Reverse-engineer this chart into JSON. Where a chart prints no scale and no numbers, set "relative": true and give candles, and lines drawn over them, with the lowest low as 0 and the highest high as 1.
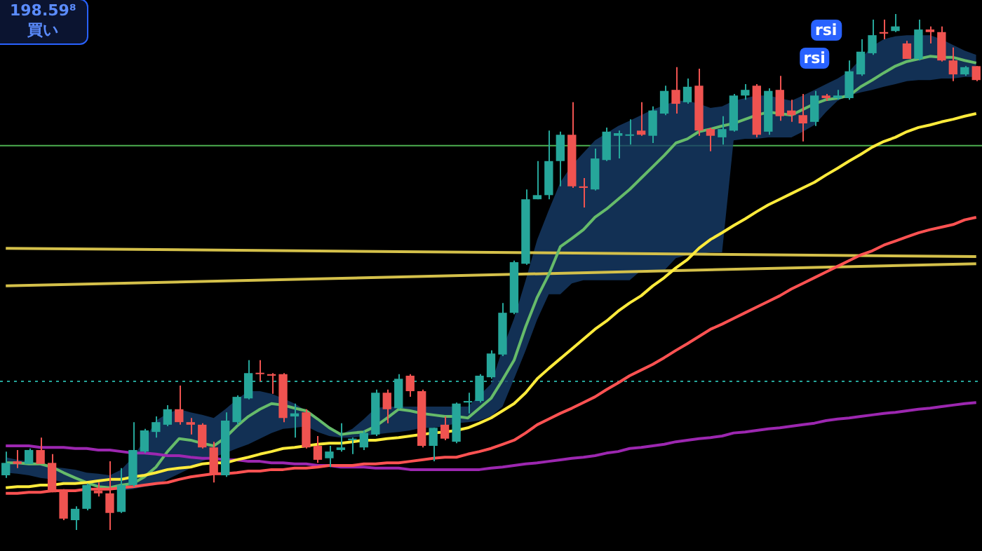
{
  "chart_data": {
    "type": "candlestick",
    "relative": true,
    "tick_labels": false,
    "categories": [
      null,
      null,
      null,
      null,
      null,
      null,
      null,
      null,
      null,
      null,
      null,
      null,
      null,
      null,
      null,
      null,
      null,
      null,
      null,
      null,
      null,
      null,
      null,
      null,
      null,
      null,
      null,
      null,
      null,
      null,
      null,
      null,
      null,
      null,
      null,
      null,
      null,
      null,
      null,
      null,
      null,
      null,
      null,
      null,
      null,
      null,
      null,
      null,
      null,
      null,
      null,
      null,
      null,
      null,
      null,
      null,
      null,
      null,
      null,
      null,
      null,
      null,
      null,
      null,
      null,
      null,
      null,
      null,
      null,
      null,
      null,
      null,
      null,
      null,
      null,
      null,
      null,
      null,
      null,
      null,
      null,
      null,
      null,
      null,
      null
    ],
    "ohlc": [
      [
        0.106,
        0.152,
        0.101,
        0.13
      ],
      [
        0.133,
        0.155,
        0.12,
        0.128
      ],
      [
        0.128,
        0.158,
        0.128,
        0.155
      ],
      [
        0.155,
        0.179,
        0.128,
        0.128
      ],
      [
        0.13,
        0.147,
        0.073,
        0.073
      ],
      [
        0.079,
        0.079,
        0.019,
        0.022
      ],
      [
        0.019,
        0.046,
        0,
        0.041
      ],
      [
        0.041,
        0.09,
        0.038,
        0.087
      ],
      [
        0.076,
        0.092,
        0.065,
        0.071
      ],
      [
        0.071,
        0.133,
        0,
        0.033
      ],
      [
        0.035,
        0.12,
        0.033,
        0.087
      ],
      [
        0.087,
        0.209,
        0.084,
        0.155
      ],
      [
        0.152,
        0.196,
        0.149,
        0.193
      ],
      [
        0.19,
        0.22,
        0.179,
        0.209
      ],
      [
        0.204,
        0.242,
        0.201,
        0.234
      ],
      [
        0.234,
        0.28,
        0.204,
        0.209
      ],
      [
        0.209,
        0.217,
        0.185,
        0.204
      ],
      [
        0.204,
        0.207,
        0.158,
        0.16
      ],
      [
        0.16,
        0.171,
        0.092,
        0.109
      ],
      [
        0.106,
        0.228,
        0.103,
        0.212
      ],
      [
        0.209,
        0.261,
        0.204,
        0.258
      ],
      [
        0.255,
        0.329,
        0.253,
        0.304
      ],
      [
        0.304,
        0.329,
        0.288,
        0.302
      ],
      [
        0.302,
        0.304,
        0.264,
        0.299
      ],
      [
        0.302,
        0.304,
        0.209,
        0.217
      ],
      [
        0.22,
        0.245,
        0.179,
        0.226
      ],
      [
        0.228,
        0.234,
        0.158,
        0.16
      ],
      [
        0.163,
        0.182,
        0.13,
        0.136
      ],
      [
        0.139,
        0.163,
        0.122,
        0.152
      ],
      [
        0.155,
        0.207,
        0.152,
        0.16
      ],
      [
        0.174,
        0.179,
        0.147,
        0.177
      ],
      [
        0.16,
        0.193,
        0.155,
        0.188
      ],
      [
        0.185,
        0.272,
        0.182,
        0.266
      ],
      [
        0.266,
        0.272,
        0.207,
        0.234
      ],
      [
        0.236,
        0.302,
        0.234,
        0.293
      ],
      [
        0.299,
        0.302,
        0.258,
        0.269
      ],
      [
        0.269,
        0.272,
        0.16,
        0.163
      ],
      [
        0.163,
        0.198,
        0.133,
        0.198
      ],
      [
        0.204,
        0.22,
        0.174,
        0.177
      ],
      [
        0.171,
        0.247,
        0.168,
        0.245
      ],
      [
        0.247,
        0.266,
        0.226,
        0.25
      ],
      [
        0.25,
        0.302,
        0.247,
        0.299
      ],
      [
        0.296,
        0.348,
        0.293,
        0.342
      ],
      [
        0.34,
        0.44,
        0.337,
        0.421
      ],
      [
        0.421,
        0.522,
        0.418,
        0.519
      ],
      [
        0.516,
        0.66,
        0.514,
        0.641
      ],
      [
        0.641,
        0.715,
        0.641,
        0.649
      ],
      [
        0.649,
        0.774,
        0.641,
        0.715
      ],
      [
        0.715,
        0.772,
        0.666,
        0.766
      ],
      [
        0.766,
        0.829,
        0.663,
        0.666
      ],
      [
        0.666,
        0.682,
        0.625,
        0.663
      ],
      [
        0.66,
        0.739,
        0.658,
        0.72
      ],
      [
        0.717,
        0.78,
        0.715,
        0.772
      ],
      [
        0.764,
        0.774,
        0.72,
        0.769
      ],
      [
        0.764,
        0.796,
        0.747,
        0.766
      ],
      [
        0.774,
        0.829,
        0.764,
        0.766
      ],
      [
        0.764,
        0.821,
        0.75,
        0.813
      ],
      [
        0.807,
        0.861,
        0.804,
        0.851
      ],
      [
        0.853,
        0.897,
        0.807,
        0.826
      ],
      [
        0.829,
        0.875,
        0.826,
        0.859
      ],
      [
        0.861,
        0.894,
        0.764,
        0.774
      ],
      [
        0.777,
        0.78,
        0.734,
        0.764
      ],
      [
        0.761,
        0.802,
        0.747,
        0.777
      ],
      [
        0.774,
        0.845,
        0.772,
        0.842
      ],
      [
        0.842,
        0.864,
        0.834,
        0.853
      ],
      [
        0.861,
        0.864,
        0.761,
        0.766
      ],
      [
        0.772,
        0.856,
        0.766,
        0.851
      ],
      [
        0.853,
        0.88,
        0.793,
        0.802
      ],
      [
        0.813,
        0.834,
        0.791,
        0.804
      ],
      [
        0.804,
        0.845,
        0.753,
        0.788
      ],
      [
        0.791,
        0.851,
        0.783,
        0.842
      ],
      [
        0.842,
        0.845,
        0.832,
        0.837
      ],
      [
        0.837,
        0.853,
        0.834,
        0.842
      ],
      [
        0.837,
        0.91,
        0.834,
        0.889
      ],
      [
        0.883,
        0.951,
        0.88,
        0.927
      ],
      [
        0.924,
        0.989,
        0.921,
        0.959
      ],
      [
        0.965,
        0.989,
        0.951,
        0.962
      ],
      [
        0.967,
        1,
        0.965,
        0.976
      ],
      [
        0.943,
        0.948,
        0.913,
        0.913
      ],
      [
        0.913,
        0.989,
        0.91,
        0.97
      ],
      [
        0.97,
        0.976,
        0.943,
        0.965
      ],
      [
        0.965,
        0.976,
        0.908,
        0.91
      ],
      [
        0.91,
        0.935,
        0.87,
        0.883
      ],
      [
        0.883,
        0.899,
        0.88,
        0.897
      ],
      [
        0.899,
        0.899,
        0.87,
        0.872
      ]
    ],
    "colors": [
      "#26a69a",
      "#ef5350",
      "#26a69a",
      "#ef5350",
      "#ef5350",
      "#ef5350",
      "#26a69a",
      "#26a69a",
      "#ef5350",
      "#ef5350",
      "#26a69a",
      "#26a69a",
      "#26a69a",
      "#26a69a",
      "#26a69a",
      "#ef5350",
      "#ef5350",
      "#ef5350",
      "#ef5350",
      "#26a69a",
      "#26a69a",
      "#26a69a",
      "#ef5350",
      "#ef5350",
      "#ef5350",
      "#26a69a",
      "#ef5350",
      "#ef5350",
      "#26a69a",
      "#26a69a",
      "#26a69a",
      "#26a69a",
      "#26a69a",
      "#ef5350",
      "#26a69a",
      "#ef5350",
      "#ef5350",
      "#26a69a",
      "#ef5350",
      "#26a69a",
      "#26a69a",
      "#26a69a",
      "#26a69a",
      "#26a69a",
      "#26a69a",
      "#26a69a",
      "#26a69a",
      "#26a69a",
      "#26a69a",
      "#ef5350",
      "#ef5350",
      "#26a69a",
      "#26a69a",
      "#26a69a",
      "#26a69a",
      "#ef5350",
      "#26a69a",
      "#26a69a",
      "#ef5350",
      "#26a69a",
      "#ef5350",
      "#ef5350",
      "#26a69a",
      "#26a69a",
      "#26a69a",
      "#ef5350",
      "#26a69a",
      "#ef5350",
      "#ef5350",
      "#ef5350",
      "#26a69a",
      "#ef5350",
      "#26a69a",
      "#26a69a",
      "#26a69a",
      "#26a69a",
      "#ef5350",
      "#26a69a",
      "#ef5350",
      "#26a69a",
      "#ef5350",
      "#ef5350",
      "#ef5350",
      "#26a69a",
      "#ef5350"
    ],
    "series": [
      {
        "type": "line",
        "color": "#ffeb3b",
        "values": [
          0.082,
          0.084,
          0.084,
          0.087,
          0.087,
          0.09,
          0.09,
          0.092,
          0.095,
          0.098,
          0.098,
          0.103,
          0.106,
          0.111,
          0.117,
          0.12,
          0.122,
          0.128,
          0.13,
          0.13,
          0.136,
          0.141,
          0.147,
          0.152,
          0.158,
          0.16,
          0.163,
          0.166,
          0.168,
          0.168,
          0.171,
          0.174,
          0.174,
          0.177,
          0.179,
          0.182,
          0.185,
          0.188,
          0.19,
          0.193,
          0.198,
          0.207,
          0.217,
          0.231,
          0.245,
          0.266,
          0.293,
          0.313,
          0.332,
          0.351,
          0.37,
          0.389,
          0.405,
          0.424,
          0.44,
          0.454,
          0.473,
          0.489,
          0.508,
          0.524,
          0.546,
          0.563,
          0.576,
          0.59,
          0.603,
          0.617,
          0.63,
          0.641,
          0.652,
          0.663,
          0.674,
          0.688,
          0.701,
          0.715,
          0.728,
          0.742,
          0.753,
          0.761,
          0.772,
          0.78,
          0.785,
          0.791,
          0.796,
          0.802,
          0.807
        ]
      },
      {
        "type": "line",
        "color": "#ff5252",
        "values": [
          0.071,
          0.071,
          0.073,
          0.073,
          0.076,
          0.076,
          0.076,
          0.079,
          0.079,
          0.079,
          0.082,
          0.084,
          0.087,
          0.09,
          0.092,
          0.098,
          0.103,
          0.106,
          0.109,
          0.109,
          0.111,
          0.114,
          0.114,
          0.117,
          0.117,
          0.12,
          0.12,
          0.122,
          0.125,
          0.125,
          0.125,
          0.128,
          0.128,
          0.13,
          0.13,
          0.133,
          0.136,
          0.139,
          0.141,
          0.141,
          0.147,
          0.152,
          0.158,
          0.166,
          0.174,
          0.188,
          0.204,
          0.215,
          0.226,
          0.236,
          0.247,
          0.258,
          0.272,
          0.285,
          0.299,
          0.31,
          0.321,
          0.334,
          0.348,
          0.361,
          0.375,
          0.389,
          0.399,
          0.41,
          0.421,
          0.432,
          0.443,
          0.454,
          0.467,
          0.478,
          0.489,
          0.5,
          0.511,
          0.522,
          0.533,
          0.541,
          0.552,
          0.56,
          0.568,
          0.576,
          0.582,
          0.587,
          0.592,
          0.601,
          0.606
        ]
      },
      {
        "type": "line",
        "color": "#9c27b0",
        "values": [
          0.163,
          0.163,
          0.163,
          0.16,
          0.16,
          0.16,
          0.158,
          0.158,
          0.155,
          0.155,
          0.152,
          0.149,
          0.149,
          0.147,
          0.144,
          0.144,
          0.141,
          0.139,
          0.139,
          0.136,
          0.136,
          0.133,
          0.133,
          0.13,
          0.13,
          0.128,
          0.128,
          0.125,
          0.125,
          0.122,
          0.122,
          0.122,
          0.12,
          0.12,
          0.12,
          0.117,
          0.117,
          0.117,
          0.117,
          0.117,
          0.117,
          0.117,
          0.12,
          0.122,
          0.125,
          0.128,
          0.13,
          0.133,
          0.136,
          0.139,
          0.141,
          0.144,
          0.149,
          0.152,
          0.158,
          0.16,
          0.163,
          0.166,
          0.171,
          0.174,
          0.177,
          0.179,
          0.182,
          0.188,
          0.19,
          0.193,
          0.196,
          0.198,
          0.201,
          0.204,
          0.207,
          0.212,
          0.215,
          0.217,
          0.22,
          0.223,
          0.226,
          0.228,
          0.231,
          0.234,
          0.236,
          0.239,
          0.242,
          0.245,
          0.247
        ]
      },
      {
        "type": "line",
        "color": "#66bb6a",
        "values": [
          0.13,
          0.13,
          0.128,
          0.128,
          0.122,
          0.111,
          0.101,
          0.092,
          0.084,
          0.082,
          0.087,
          0.09,
          0.103,
          0.122,
          0.152,
          0.177,
          0.174,
          0.168,
          0.163,
          0.179,
          0.201,
          0.22,
          0.234,
          0.245,
          0.242,
          0.236,
          0.231,
          0.215,
          0.198,
          0.185,
          0.188,
          0.19,
          0.201,
          0.217,
          0.234,
          0.231,
          0.226,
          0.223,
          0.22,
          0.22,
          0.217,
          0.236,
          0.255,
          0.291,
          0.329,
          0.394,
          0.451,
          0.495,
          0.549,
          0.565,
          0.582,
          0.606,
          0.622,
          0.641,
          0.66,
          0.682,
          0.704,
          0.726,
          0.75,
          0.758,
          0.772,
          0.777,
          0.783,
          0.788,
          0.796,
          0.804,
          0.81,
          0.807,
          0.804,
          0.815,
          0.826,
          0.834,
          0.837,
          0.842,
          0.859,
          0.872,
          0.886,
          0.899,
          0.908,
          0.913,
          0.918,
          0.916,
          0.916,
          0.91,
          0.905
        ],
        "upper": [
          0.141,
          0.136,
          0.133,
          0.128,
          0.122,
          0.12,
          0.117,
          0.111,
          0.109,
          0.106,
          0.117,
          0.141,
          0.174,
          0.212,
          0.226,
          0.234,
          0.228,
          0.223,
          0.217,
          0.234,
          0.253,
          0.269,
          0.269,
          0.264,
          0.255,
          0.245,
          0.231,
          0.215,
          0.198,
          0.185,
          0.196,
          0.215,
          0.236,
          0.239,
          0.239,
          0.239,
          0.239,
          0.239,
          0.239,
          0.239,
          0.239,
          0.261,
          0.283,
          0.351,
          0.41,
          0.484,
          0.563,
          0.62,
          0.674,
          0.707,
          0.731,
          0.755,
          0.769,
          0.783,
          0.793,
          0.804,
          0.815,
          0.823,
          0.832,
          0.832,
          0.826,
          0.818,
          0.821,
          0.832,
          0.837,
          0.842,
          0.842,
          0.837,
          0.832,
          0.842,
          0.853,
          0.864,
          0.875,
          0.889,
          0.913,
          0.938,
          0.951,
          0.957,
          0.959,
          0.959,
          0.959,
          0.951,
          0.94,
          0.929,
          0.921
        ],
        "lower": [
          0.111,
          0.109,
          0.106,
          0.101,
          0.098,
          0.092,
          0.09,
          0.087,
          0.082,
          0.079,
          0.076,
          0.079,
          0.084,
          0.087,
          0.098,
          0.109,
          0.12,
          0.133,
          0.141,
          0.149,
          0.158,
          0.166,
          0.177,
          0.188,
          0.196,
          0.198,
          0.201,
          0.19,
          0.182,
          0.179,
          0.179,
          0.182,
          0.185,
          0.188,
          0.19,
          0.193,
          0.198,
          0.198,
          0.201,
          0.207,
          0.209,
          0.212,
          0.22,
          0.239,
          0.293,
          0.348,
          0.408,
          0.457,
          0.457,
          0.478,
          0.484,
          0.484,
          0.484,
          0.484,
          0.484,
          0.503,
          0.503,
          0.503,
          0.527,
          0.533,
          0.535,
          0.538,
          0.538,
          0.755,
          0.758,
          0.758,
          0.761,
          0.761,
          0.761,
          0.772,
          0.785,
          0.81,
          0.832,
          0.842,
          0.848,
          0.853,
          0.859,
          0.864,
          0.87,
          0.872,
          0.872,
          0.875,
          0.875,
          0.878,
          0.878
        ]
      },
      {
        "type": "line",
        "color": "#d4c04a",
        "values": [
          0.546,
          null,
          null,
          null,
          null,
          null,
          null,
          null,
          null,
          null,
          null,
          null,
          null,
          null,
          null,
          null,
          null,
          null,
          null,
          null,
          null,
          null,
          null,
          null,
          null,
          null,
          null,
          null,
          null,
          null,
          null,
          null,
          null,
          null,
          null,
          null,
          null,
          null,
          null,
          null,
          null,
          null,
          null,
          null,
          null,
          null,
          null,
          null,
          null,
          null,
          null,
          null,
          null,
          null,
          null,
          null,
          null,
          null,
          null,
          null,
          null,
          null,
          null,
          null,
          null,
          null,
          null,
          null,
          null,
          null,
          null,
          null,
          null,
          null,
          null,
          null,
          null,
          null,
          null,
          null,
          null,
          null,
          null,
          null,
          0.53
        ]
      },
      {
        "type": "line",
        "color": "#d4c04a",
        "values": [
          0.473,
          null,
          null,
          null,
          null,
          null,
          null,
          null,
          null,
          null,
          null,
          null,
          null,
          null,
          null,
          null,
          null,
          null,
          null,
          null,
          null,
          null,
          null,
          null,
          null,
          null,
          null,
          null,
          null,
          null,
          null,
          null,
          null,
          null,
          null,
          null,
          null,
          null,
          null,
          null,
          null,
          null,
          null,
          null,
          null,
          null,
          null,
          null,
          null,
          null,
          null,
          null,
          null,
          null,
          null,
          null,
          null,
          null,
          null,
          null,
          null,
          null,
          null,
          null,
          null,
          null,
          null,
          null,
          null,
          null,
          null,
          null,
          null,
          null,
          null,
          null,
          null,
          null,
          null,
          null,
          null,
          null,
          null,
          null,
          0.516
        ]
      }
    ],
    "ref_lines": [
      {
        "axis": "y",
        "value": 0.745,
        "color": "#4caf50",
        "line_style": "solid"
      },
      {
        "axis": "y",
        "value": 0.288,
        "color": "#26a69a",
        "line_style": "dotted"
      }
    ],
    "annotations": [
      "198.59⁸",
      "買い",
      "rsi",
      "rsi"
    ]
  }
}
